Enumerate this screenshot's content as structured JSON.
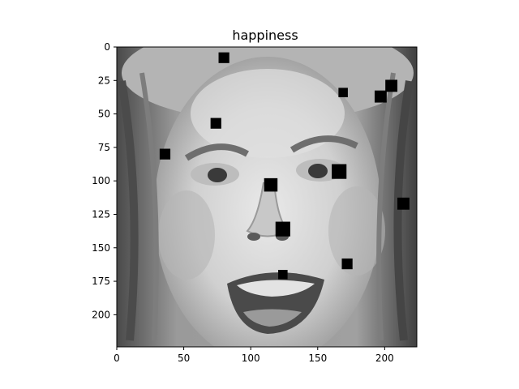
{
  "figure": {
    "title": "happiness",
    "image_description_icon": "grayscale-face-photo",
    "x_ticks": [
      "0",
      "50",
      "100",
      "150",
      "200"
    ],
    "y_ticks": [
      "0",
      "25",
      "50",
      "75",
      "100",
      "125",
      "150",
      "175",
      "200"
    ],
    "xlim": [
      0,
      224
    ],
    "ylim": [
      224,
      0
    ],
    "occlusion_color": "#000000"
  },
  "occlusions": [
    {
      "x": 80,
      "y": 8,
      "size": 8
    },
    {
      "x": 169,
      "y": 34,
      "size": 7
    },
    {
      "x": 197,
      "y": 37,
      "size": 9
    },
    {
      "x": 205,
      "y": 29,
      "size": 9
    },
    {
      "x": 74,
      "y": 57,
      "size": 8
    },
    {
      "x": 36,
      "y": 80,
      "size": 8
    },
    {
      "x": 115,
      "y": 103,
      "size": 10
    },
    {
      "x": 166,
      "y": 93,
      "size": 11
    },
    {
      "x": 214,
      "y": 117,
      "size": 9
    },
    {
      "x": 124,
      "y": 136,
      "size": 11
    },
    {
      "x": 172,
      "y": 162,
      "size": 8
    },
    {
      "x": 124,
      "y": 170,
      "size": 7
    }
  ]
}
